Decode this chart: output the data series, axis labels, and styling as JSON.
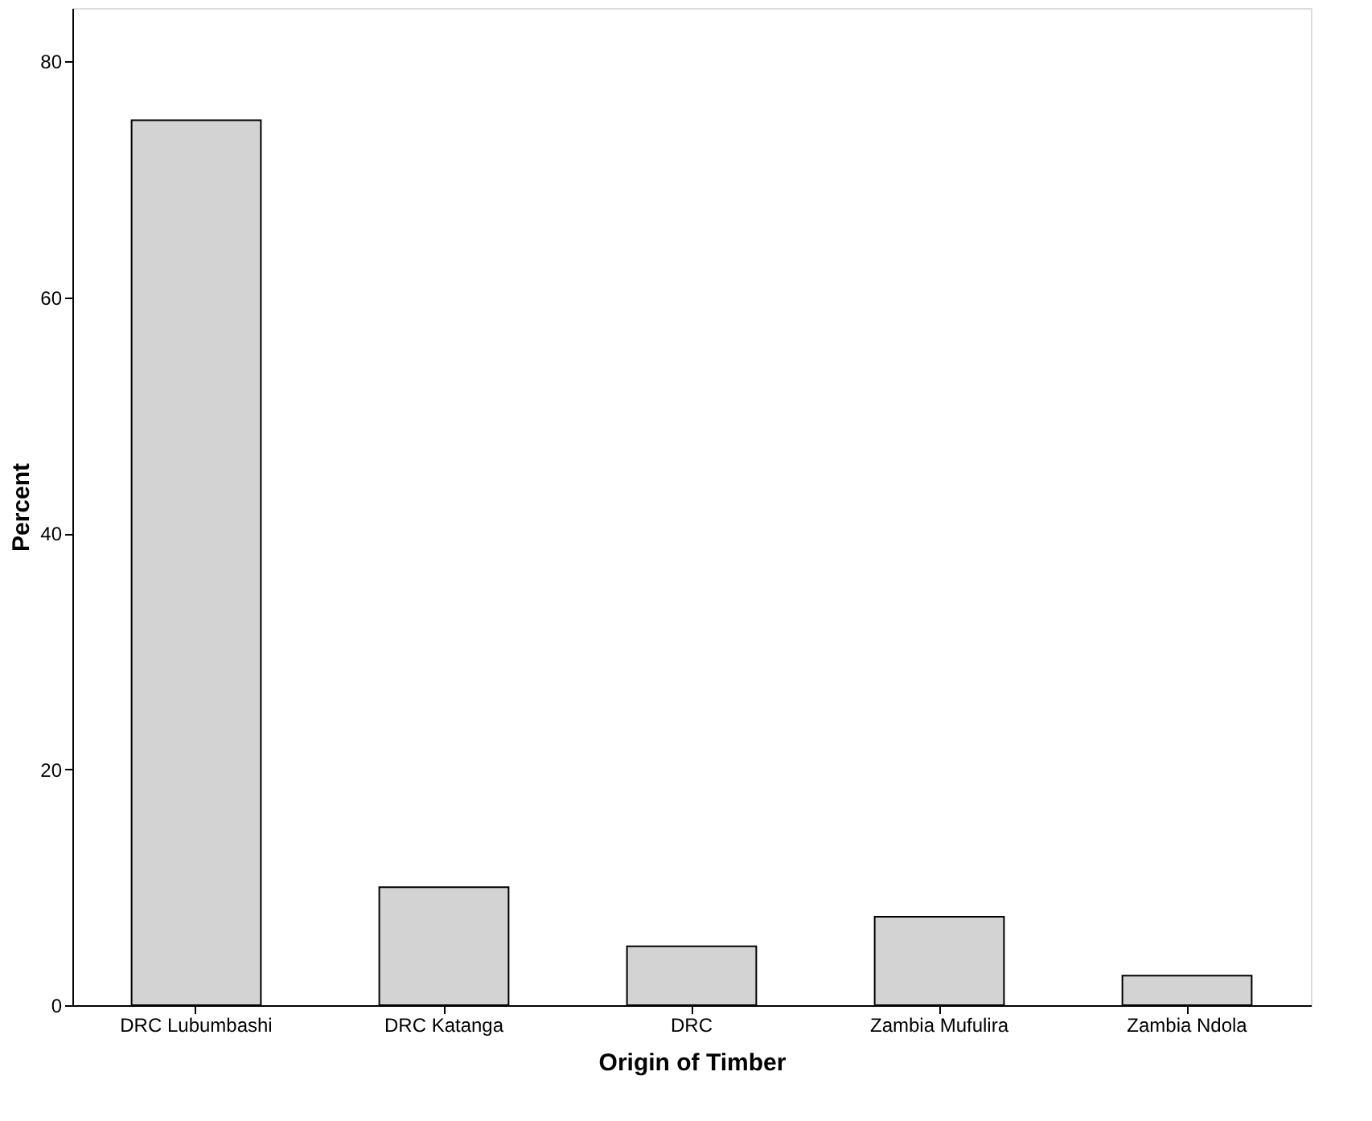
{
  "chart_data": {
    "type": "bar",
    "xlabel": "Origin of Timber",
    "ylabel": "Percent",
    "categories": [
      "DRC Lubumbashi",
      "DRC Katanga",
      "DRC",
      "Zambia Mufulira",
      "Zambia Ndola"
    ],
    "values": [
      75,
      10,
      5,
      7.5,
      2.5
    ],
    "color": "#d3d3d3",
    "ylim": [
      0,
      84.5
    ],
    "yticks": [
      0,
      20,
      40,
      60,
      80
    ],
    "grid": false
  }
}
